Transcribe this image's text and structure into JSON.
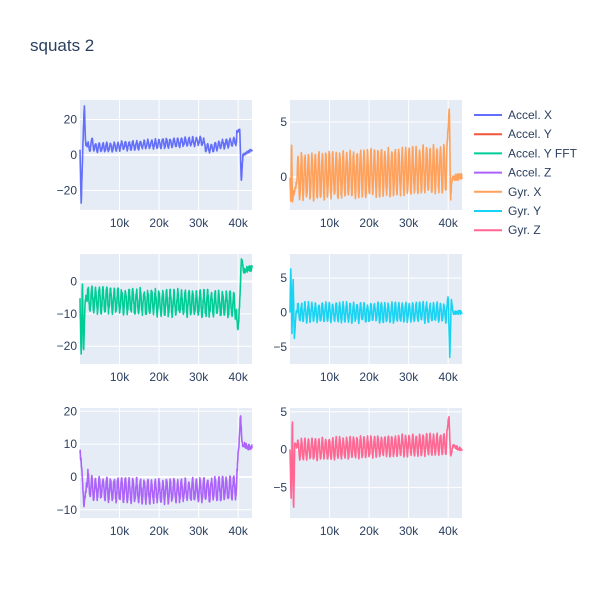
{
  "chart_data": {
    "type": "line",
    "title": "squats 2",
    "legend_position": "right",
    "grid": true,
    "x_tick_labels": [
      "10k",
      "20k",
      "30k",
      "40k"
    ],
    "panels": [
      {
        "series": {
          "name": "Accel. X",
          "color": "#636efa",
          "x_range": [
            0,
            43500
          ],
          "base": 3,
          "amp": 2.2,
          "cycles": 40,
          "jitter": 0.8,
          "key_points": [
            [
              0,
              3
            ],
            [
              300,
              -28
            ],
            [
              500,
              -12
            ],
            [
              800,
              10
            ],
            [
              1100,
              29
            ],
            [
              1400,
              6
            ],
            [
              2500,
              6
            ],
            [
              3200,
              13
            ],
            [
              3600,
              5
            ],
            [
              31000,
              13
            ],
            [
              32000,
              4
            ],
            [
              40400,
              14
            ],
            [
              40800,
              -16
            ],
            [
              41200,
              0
            ],
            [
              43500,
              3
            ]
          ]
        },
        "yaxis": {
          "range": [
            -31,
            31
          ],
          "ticks": [
            -20,
            0,
            20
          ]
        },
        "xaxis": {
          "range": [
            0,
            43500
          ],
          "ticks": [
            10000,
            20000,
            30000,
            40000
          ]
        }
      },
      {
        "series": {
          "name": "Gyr. X",
          "color": "#ffa15a",
          "x_range": [
            0,
            43500
          ],
          "base": 0,
          "amp": 2.0,
          "cycles": 43,
          "jitter": 0.3,
          "key_points": [
            [
              0,
              0
            ],
            [
              200,
              -2.5
            ],
            [
              400,
              3.5
            ],
            [
              600,
              -2
            ],
            [
              2000,
              0
            ],
            [
              39500,
              1.5
            ],
            [
              40300,
              6.3
            ],
            [
              40600,
              -2
            ],
            [
              41000,
              0
            ],
            [
              43500,
              0
            ]
          ]
        },
        "yaxis": {
          "range": [
            -3,
            7
          ],
          "ticks": [
            0,
            5
          ]
        },
        "xaxis": {
          "range": [
            0,
            43500
          ],
          "ticks": [
            10000,
            20000,
            30000,
            40000
          ]
        }
      },
      {
        "series": {
          "name": "Accel. Y FFT",
          "color": "#00cc96",
          "x_range": [
            0,
            43500
          ],
          "base": -6,
          "amp": 3.5,
          "cycles": 40,
          "jitter": 1.0,
          "key_points": [
            [
              0,
              -5
            ],
            [
              300,
              -24
            ],
            [
              600,
              0
            ],
            [
              900,
              -23
            ],
            [
              1300,
              -5
            ],
            [
              20000,
              -7
            ],
            [
              38000,
              -8
            ],
            [
              39500,
              -10
            ],
            [
              40000,
              -15
            ],
            [
              40400,
              -6
            ],
            [
              40800,
              7
            ],
            [
              41500,
              3
            ],
            [
              42500,
              4
            ],
            [
              43500,
              4
            ]
          ]
        },
        "yaxis": {
          "range": [
            -25.5,
            8.5
          ],
          "ticks": [
            -20,
            -10,
            0
          ]
        },
        "xaxis": {
          "range": [
            0,
            43500
          ],
          "ticks": [
            10000,
            20000,
            30000,
            40000
          ]
        }
      },
      {
        "series": {
          "name": "Gyr. Y",
          "color": "#19d3f3",
          "x_range": [
            0,
            43500
          ],
          "base": 0,
          "amp": 1.3,
          "cycles": 43,
          "jitter": 0.3,
          "key_points": [
            [
              0,
              0
            ],
            [
              200,
              7
            ],
            [
              500,
              -3
            ],
            [
              800,
              5
            ],
            [
              1100,
              -4
            ],
            [
              1500,
              0
            ],
            [
              39500,
              0
            ],
            [
              40000,
              2.5
            ],
            [
              40400,
              -6.5
            ],
            [
              40800,
              2
            ],
            [
              41200,
              0
            ],
            [
              43500,
              0
            ]
          ]
        },
        "yaxis": {
          "range": [
            -7.5,
            8.5
          ],
          "ticks": [
            -5,
            0,
            5
          ]
        },
        "xaxis": {
          "range": [
            0,
            43500
          ],
          "ticks": [
            10000,
            20000,
            30000,
            40000
          ]
        }
      },
      {
        "series": {
          "name": "Accel. Z",
          "color": "#ab63fa",
          "x_range": [
            0,
            43500
          ],
          "base": -4,
          "amp": 3.2,
          "cycles": 40,
          "jitter": 0.9,
          "key_points": [
            [
              0,
              8
            ],
            [
              500,
              2
            ],
            [
              1000,
              -9
            ],
            [
              2000,
              1
            ],
            [
              3000,
              -3
            ],
            [
              20000,
              -5
            ],
            [
              38000,
              -3
            ],
            [
              39500,
              -2
            ],
            [
              40200,
              10
            ],
            [
              40600,
              19
            ],
            [
              41000,
              10
            ],
            [
              42500,
              9
            ],
            [
              43500,
              9
            ]
          ]
        },
        "yaxis": {
          "range": [
            -12.5,
            21
          ],
          "ticks": [
            -10,
            0,
            10,
            20
          ]
        },
        "xaxis": {
          "range": [
            0,
            43500
          ],
          "ticks": [
            10000,
            20000,
            30000,
            40000
          ]
        }
      },
      {
        "series": {
          "name": "Gyr. Z",
          "color": "#ff6692",
          "x_range": [
            0,
            43500
          ],
          "base": 0,
          "amp": 1.3,
          "cycles": 43,
          "jitter": 0.25,
          "key_points": [
            [
              0,
              0
            ],
            [
              300,
              -7
            ],
            [
              600,
              4.5
            ],
            [
              900,
              -8.5
            ],
            [
              1200,
              1
            ],
            [
              2000,
              0
            ],
            [
              39500,
              1.5
            ],
            [
              40200,
              4.5
            ],
            [
              40600,
              -1
            ],
            [
              41200,
              0.5
            ],
            [
              43500,
              0
            ]
          ]
        },
        "yaxis": {
          "range": [
            -9,
            5.5
          ],
          "ticks": [
            -5,
            0,
            5
          ]
        },
        "xaxis": {
          "range": [
            0,
            43500
          ],
          "ticks": [
            10000,
            20000,
            30000,
            40000
          ]
        }
      }
    ],
    "legend": [
      {
        "name": "Accel. X",
        "color": "#636efa"
      },
      {
        "name": "Accel. Y",
        "color": "#ef553b"
      },
      {
        "name": "Accel. Y FFT",
        "color": "#00cc96"
      },
      {
        "name": "Accel. Z",
        "color": "#ab63fa"
      },
      {
        "name": "Gyr. X",
        "color": "#ffa15a"
      },
      {
        "name": "Gyr. Y",
        "color": "#19d3f3"
      },
      {
        "name": "Gyr. Z",
        "color": "#ff6692"
      }
    ]
  }
}
